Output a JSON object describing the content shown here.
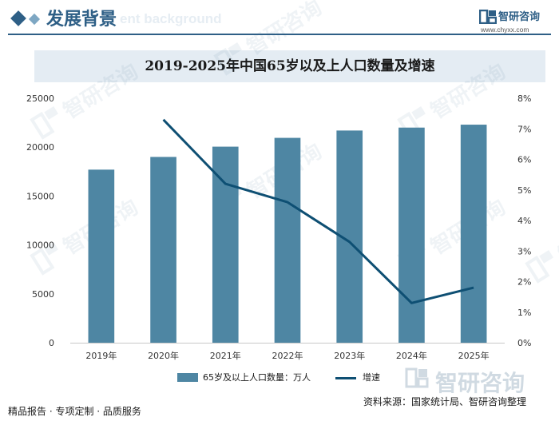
{
  "header": {
    "title": "发展背景",
    "ghost_text": "ent background"
  },
  "brand": {
    "name": "智研咨询",
    "url": "www.chyxx.com"
  },
  "chart_data": {
    "type": "bar",
    "title": "2019-2025年中国65岁以及上人口数量及增速",
    "categories": [
      "2019年",
      "2020年",
      "2021年",
      "2022年",
      "2023年",
      "2024年",
      "2025年"
    ],
    "series": [
      {
        "name": "65岁及以上人口数量：万人",
        "type": "bar",
        "axis": "left",
        "values": [
          17700,
          19000,
          20050,
          20950,
          21700,
          22000,
          22300
        ]
      },
      {
        "name": "增速",
        "type": "line",
        "axis": "right",
        "values": [
          null,
          7.3,
          5.2,
          4.6,
          3.3,
          1.3,
          1.8
        ]
      }
    ],
    "ylim": [
      0,
      25000
    ],
    "yticks": [
      "0",
      "5000",
      "10000",
      "15000",
      "20000",
      "25000"
    ],
    "y2lim": [
      0,
      8
    ],
    "y2ticks": [
      "0%",
      "1%",
      "2%",
      "3%",
      "4%",
      "5%",
      "6%",
      "7%",
      "8%"
    ],
    "colors": {
      "bar": "#4e86a3",
      "line": "#0e4f73"
    },
    "legend_position": "bottom"
  },
  "footer": {
    "tagline": "精品报告 · 专项定制 · 品质服务",
    "source": "资料来源：国家统计局、智研咨询整理"
  }
}
